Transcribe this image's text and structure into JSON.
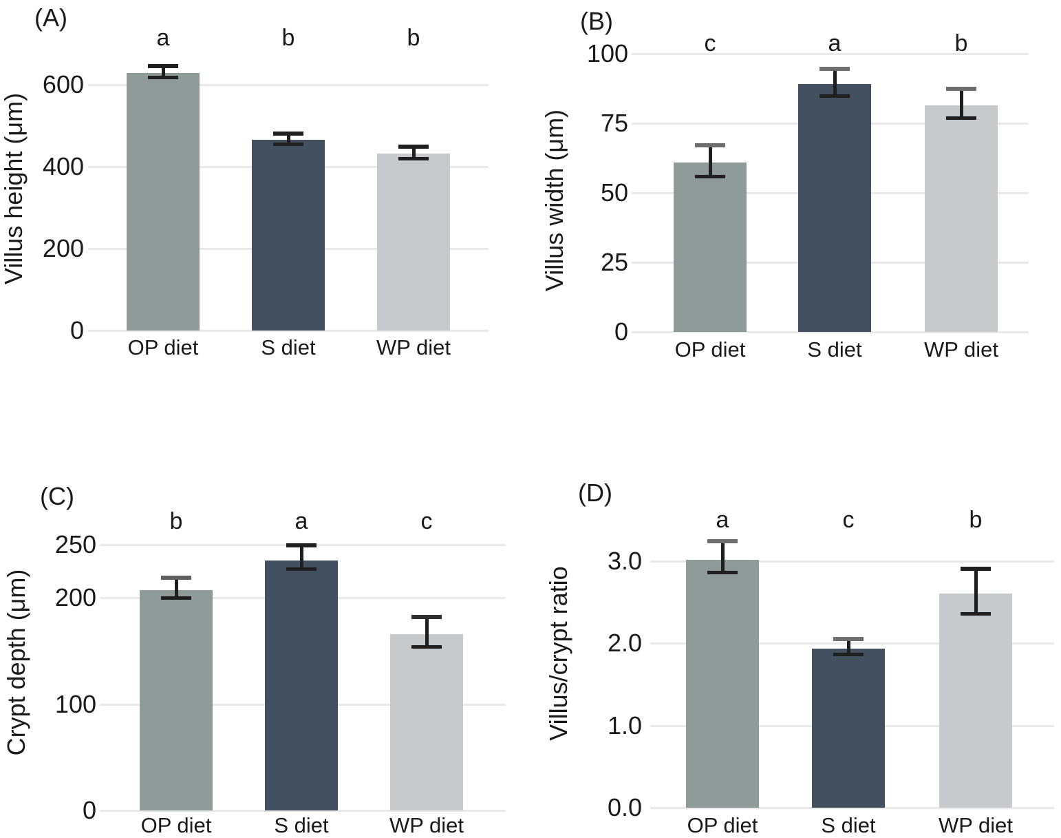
{
  "figure": {
    "style": {
      "background": "#ffffff",
      "bar_colors": [
        "#8e9b99",
        "#42505f",
        "#c6cacd"
      ],
      "gridline_color": "#e9e9e9",
      "error_bar_color": "#1f1f1f",
      "text_color": "#1a1a1a"
    }
  },
  "chart_data": [
    {
      "type": "bar",
      "panel_tag": "(A)",
      "ylabel": "Villus height (μm)",
      "xlabel": "",
      "categories": [
        "OP diet",
        "S diet",
        "WP diet"
      ],
      "values": [
        628,
        466,
        432
      ],
      "error_low": [
        618,
        455,
        421
      ],
      "error_high": [
        645,
        481,
        449
      ],
      "sig_letters": [
        "a",
        "b",
        "b"
      ],
      "ytick_values": [
        0,
        200,
        400,
        600
      ],
      "ytick_labels": [
        "0",
        "200",
        "400",
        "600"
      ],
      "ylim": [
        0,
        680
      ],
      "grid": true,
      "legend": "none",
      "cap_top_colors": [
        "#1f1f1f",
        "#1f1f1f",
        "#1f1f1f"
      ]
    },
    {
      "type": "bar",
      "panel_tag": "(B)",
      "ylabel": "Villus width (μm)",
      "xlabel": "",
      "categories": [
        "OP diet",
        "S diet",
        "WP diet"
      ],
      "values": [
        61,
        89,
        81.5
      ],
      "error_low": [
        56,
        85,
        77
      ],
      "error_high": [
        67,
        94.5,
        87.5
      ],
      "sig_letters": [
        "c",
        "a",
        "b"
      ],
      "ytick_values": [
        0,
        25,
        50,
        75,
        100
      ],
      "ytick_labels": [
        "0",
        "25",
        "50",
        "75",
        "100"
      ],
      "ylim": [
        0,
        105
      ],
      "grid": true,
      "legend": "none",
      "cap_top_colors": [
        "#6e6e6e",
        "#6e6e6e",
        "#6e6e6e"
      ]
    },
    {
      "type": "bar",
      "panel_tag": "(C)",
      "ylabel": "Crypt depth (μm)",
      "xlabel": "",
      "categories": [
        "OP diet",
        "S diet",
        "WP diet"
      ],
      "values": [
        207,
        235,
        166
      ],
      "error_low": [
        200,
        227,
        154
      ],
      "error_high": [
        219,
        249,
        182
      ],
      "sig_letters": [
        "b",
        "a",
        "c"
      ],
      "ytick_values": [
        0,
        100,
        200,
        250
      ],
      "ytick_labels": [
        "0",
        "100",
        "200",
        "250"
      ],
      "ylim": [
        0,
        270
      ],
      "grid": true,
      "legend": "none",
      "cap_top_colors": [
        "#5f5f5f",
        "#1f1f1f",
        "#2f2f2f"
      ]
    },
    {
      "type": "bar",
      "panel_tag": "(D)",
      "ylabel": "Villus/crypt ratio",
      "xlabel": "",
      "categories": [
        "OP diet",
        "S diet",
        "WP diet"
      ],
      "values": [
        3.02,
        1.94,
        2.61
      ],
      "error_low": [
        2.87,
        1.87,
        2.36
      ],
      "error_high": [
        3.24,
        2.05,
        2.91
      ],
      "sig_letters": [
        "a",
        "c",
        "b"
      ],
      "ytick_values": [
        0,
        1,
        2,
        3
      ],
      "ytick_labels": [
        "0.0",
        "1.0",
        "2.0",
        "3.0"
      ],
      "ylim": [
        0,
        3.6
      ],
      "grid": true,
      "legend": "none",
      "cap_top_colors": [
        "#6e6e6e",
        "#6e6e6e",
        "#1f1f1f"
      ]
    }
  ]
}
